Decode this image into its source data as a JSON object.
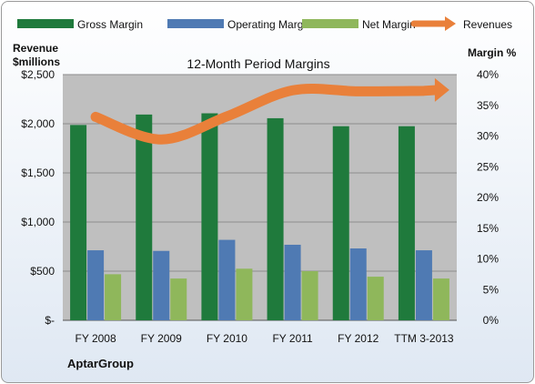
{
  "chart_data": {
    "type": "bar",
    "title": "12-Month Period Margins",
    "company": "AptarGroup",
    "y_left_label_line1": "Revenue",
    "y_left_label_line2": "$millions",
    "y_right_label": "Margin %",
    "categories": [
      "FY 2008",
      "FY 2009",
      "FY 2010",
      "FY 2011",
      "FY 2012",
      "TTM 3-2013"
    ],
    "y_left_ticks": [
      "$-",
      "$500",
      "$1,000",
      "$1,500",
      "$2,000",
      "$2,500"
    ],
    "y_left_range": [
      0,
      2500
    ],
    "y_right_ticks": [
      "0%",
      "5%",
      "10%",
      "15%",
      "20%",
      "25%",
      "30%",
      "35%",
      "40%"
    ],
    "y_right_range": [
      0,
      40
    ],
    "grid": true,
    "legend_position": "top",
    "series": [
      {
        "name": "Gross Margin",
        "type": "bar",
        "axis": "right",
        "unit": "%",
        "color": "#1f7a3c",
        "values": [
          31.8,
          33.5,
          33.7,
          32.9,
          31.6,
          31.6
        ]
      },
      {
        "name": "Operating Margin",
        "type": "bar",
        "axis": "right",
        "unit": "%",
        "color": "#4f7ab3",
        "values": [
          11.4,
          11.3,
          13.1,
          12.3,
          11.7,
          11.4
        ]
      },
      {
        "name": "Net Margin",
        "type": "bar",
        "axis": "right",
        "unit": "%",
        "color": "#8fb75b",
        "values": [
          7.5,
          6.8,
          8.4,
          8.0,
          7.1,
          6.8
        ]
      },
      {
        "name": "Revenues",
        "type": "line",
        "axis": "left",
        "unit": "$millions",
        "color": "#e9803a",
        "values": [
          2070,
          1840,
          2075,
          2340,
          2330,
          2335
        ]
      }
    ]
  }
}
